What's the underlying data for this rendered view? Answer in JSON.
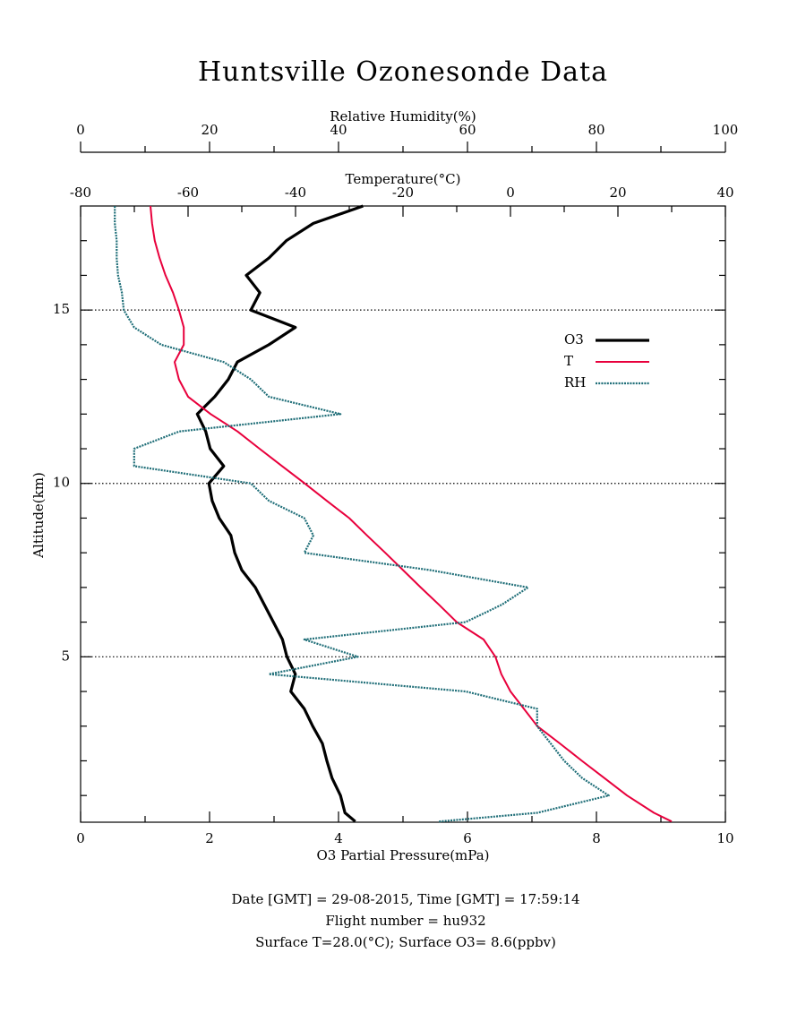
{
  "chart_data": {
    "type": "profile",
    "title": "Huntsville Ozonesonde Data",
    "x_label": "O3 Partial Pressure(mPa)",
    "x2_label": "Temperature(°C)",
    "x3_label": "Relative Humidity(%)",
    "y_label": "Altitude(km)",
    "footer": [
      "Date [GMT] = 29-08-2015,  Time [GMT] = 17:59:14",
      "Flight number = hu932",
      "Surface T=28.0(°C); Surface O3= 8.6(ppbv)"
    ],
    "xlim": [
      0,
      10
    ],
    "xticks": [
      0,
      2,
      4,
      6,
      8,
      10
    ],
    "xminorticks": [
      1,
      3,
      5,
      7,
      9
    ],
    "x2lim": [
      -80,
      40
    ],
    "x2ticks": [
      -80,
      -60,
      -40,
      -20,
      0,
      20,
      40
    ],
    "x2minorticks": [
      -70,
      -50,
      -30,
      -10,
      10,
      30
    ],
    "x3lim": [
      0,
      100
    ],
    "x3ticks": [
      0,
      20,
      40,
      60,
      80,
      100
    ],
    "x3minorticks": [
      10,
      30,
      50,
      70,
      90
    ],
    "ylim": [
      0.23,
      18
    ],
    "yticks": [
      5,
      10,
      15
    ],
    "yminorticks": [
      1,
      2,
      3,
      4,
      6,
      7,
      8,
      9,
      11,
      12,
      13,
      14,
      16,
      17
    ],
    "grid": true,
    "legend": "upper right",
    "y": [
      0.25,
      0.5,
      1,
      1.5,
      2,
      2.5,
      3,
      3.5,
      4,
      4.5,
      5,
      5.5,
      6,
      6.5,
      7,
      7.5,
      8,
      8.5,
      9,
      9.5,
      10,
      10.5,
      11,
      11.5,
      12,
      12.5,
      13,
      13.5,
      14,
      14.5,
      15,
      15.5,
      16,
      16.5,
      17,
      17.5,
      18
    ],
    "series": [
      {
        "name": "O3",
        "color": "#000000",
        "axis": "x",
        "values": [
          4.26,
          4.1,
          4.03,
          3.9,
          3.82,
          3.75,
          3.6,
          3.47,
          3.26,
          3.33,
          3.2,
          3.13,
          2.99,
          2.85,
          2.71,
          2.5,
          2.39,
          2.33,
          2.15,
          2.04,
          1.99,
          2.22,
          2.01,
          1.94,
          1.81,
          2.08,
          2.29,
          2.43,
          2.92,
          3.33,
          2.64,
          2.78,
          2.57,
          2.92,
          3.19,
          3.61,
          4.38
        ]
      },
      {
        "name": "T",
        "color": "#e8003c",
        "axis": "x2",
        "values": [
          30,
          26.7,
          21.7,
          17.5,
          13.3,
          9.2,
          5,
          2.5,
          0,
          -1.7,
          -2.8,
          -5,
          -10,
          -13.3,
          -16.7,
          -20,
          -23.3,
          -26.7,
          -30,
          -34.2,
          -38.3,
          -42.5,
          -46.7,
          -50.8,
          -55.8,
          -60,
          -61.7,
          -62.5,
          -60.8,
          -60.8,
          -61.7,
          -62.8,
          -64.2,
          -65.3,
          -66.2,
          -66.7,
          -67
        ]
      },
      {
        "name": "RH",
        "color": "#1f6e78",
        "axis": "x3",
        "values": [
          55.6,
          70.8,
          81.9,
          77.8,
          75,
          72.9,
          70.8,
          70.8,
          59.7,
          29.2,
          43,
          34.7,
          59.7,
          65.3,
          69.4,
          54.2,
          34.7,
          36.1,
          34.7,
          29.2,
          26.4,
          8.3,
          8.3,
          15.3,
          40.3,
          29.2,
          26.4,
          22.2,
          12.5,
          8.3,
          6.7,
          6.4,
          5.8,
          5.6,
          5.6,
          5.3,
          5.3
        ]
      }
    ]
  }
}
